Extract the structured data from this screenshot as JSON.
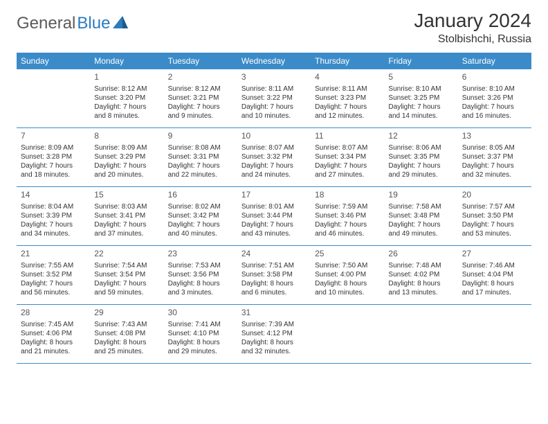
{
  "brand": {
    "name_part1": "General",
    "name_part2": "Blue",
    "text_color": "#5a5a5a",
    "accent_color": "#2a7bbf"
  },
  "header": {
    "title": "January 2024",
    "location": "Stolbishchi, Russia"
  },
  "colors": {
    "header_bg": "#3b8bc9",
    "header_fg": "#ffffff",
    "border": "#3b8bc9",
    "text": "#333333",
    "daynum": "#555555",
    "background": "#ffffff"
  },
  "day_labels": [
    "Sunday",
    "Monday",
    "Tuesday",
    "Wednesday",
    "Thursday",
    "Friday",
    "Saturday"
  ],
  "weeks": [
    [
      {
        "num": "",
        "sunrise": "",
        "sunset": "",
        "daylight": ""
      },
      {
        "num": "1",
        "sunrise": "Sunrise: 8:12 AM",
        "sunset": "Sunset: 3:20 PM",
        "daylight": "Daylight: 7 hours and 8 minutes."
      },
      {
        "num": "2",
        "sunrise": "Sunrise: 8:12 AM",
        "sunset": "Sunset: 3:21 PM",
        "daylight": "Daylight: 7 hours and 9 minutes."
      },
      {
        "num": "3",
        "sunrise": "Sunrise: 8:11 AM",
        "sunset": "Sunset: 3:22 PM",
        "daylight": "Daylight: 7 hours and 10 minutes."
      },
      {
        "num": "4",
        "sunrise": "Sunrise: 8:11 AM",
        "sunset": "Sunset: 3:23 PM",
        "daylight": "Daylight: 7 hours and 12 minutes."
      },
      {
        "num": "5",
        "sunrise": "Sunrise: 8:10 AM",
        "sunset": "Sunset: 3:25 PM",
        "daylight": "Daylight: 7 hours and 14 minutes."
      },
      {
        "num": "6",
        "sunrise": "Sunrise: 8:10 AM",
        "sunset": "Sunset: 3:26 PM",
        "daylight": "Daylight: 7 hours and 16 minutes."
      }
    ],
    [
      {
        "num": "7",
        "sunrise": "Sunrise: 8:09 AM",
        "sunset": "Sunset: 3:28 PM",
        "daylight": "Daylight: 7 hours and 18 minutes."
      },
      {
        "num": "8",
        "sunrise": "Sunrise: 8:09 AM",
        "sunset": "Sunset: 3:29 PM",
        "daylight": "Daylight: 7 hours and 20 minutes."
      },
      {
        "num": "9",
        "sunrise": "Sunrise: 8:08 AM",
        "sunset": "Sunset: 3:31 PM",
        "daylight": "Daylight: 7 hours and 22 minutes."
      },
      {
        "num": "10",
        "sunrise": "Sunrise: 8:07 AM",
        "sunset": "Sunset: 3:32 PM",
        "daylight": "Daylight: 7 hours and 24 minutes."
      },
      {
        "num": "11",
        "sunrise": "Sunrise: 8:07 AM",
        "sunset": "Sunset: 3:34 PM",
        "daylight": "Daylight: 7 hours and 27 minutes."
      },
      {
        "num": "12",
        "sunrise": "Sunrise: 8:06 AM",
        "sunset": "Sunset: 3:35 PM",
        "daylight": "Daylight: 7 hours and 29 minutes."
      },
      {
        "num": "13",
        "sunrise": "Sunrise: 8:05 AM",
        "sunset": "Sunset: 3:37 PM",
        "daylight": "Daylight: 7 hours and 32 minutes."
      }
    ],
    [
      {
        "num": "14",
        "sunrise": "Sunrise: 8:04 AM",
        "sunset": "Sunset: 3:39 PM",
        "daylight": "Daylight: 7 hours and 34 minutes."
      },
      {
        "num": "15",
        "sunrise": "Sunrise: 8:03 AM",
        "sunset": "Sunset: 3:41 PM",
        "daylight": "Daylight: 7 hours and 37 minutes."
      },
      {
        "num": "16",
        "sunrise": "Sunrise: 8:02 AM",
        "sunset": "Sunset: 3:42 PM",
        "daylight": "Daylight: 7 hours and 40 minutes."
      },
      {
        "num": "17",
        "sunrise": "Sunrise: 8:01 AM",
        "sunset": "Sunset: 3:44 PM",
        "daylight": "Daylight: 7 hours and 43 minutes."
      },
      {
        "num": "18",
        "sunrise": "Sunrise: 7:59 AM",
        "sunset": "Sunset: 3:46 PM",
        "daylight": "Daylight: 7 hours and 46 minutes."
      },
      {
        "num": "19",
        "sunrise": "Sunrise: 7:58 AM",
        "sunset": "Sunset: 3:48 PM",
        "daylight": "Daylight: 7 hours and 49 minutes."
      },
      {
        "num": "20",
        "sunrise": "Sunrise: 7:57 AM",
        "sunset": "Sunset: 3:50 PM",
        "daylight": "Daylight: 7 hours and 53 minutes."
      }
    ],
    [
      {
        "num": "21",
        "sunrise": "Sunrise: 7:55 AM",
        "sunset": "Sunset: 3:52 PM",
        "daylight": "Daylight: 7 hours and 56 minutes."
      },
      {
        "num": "22",
        "sunrise": "Sunrise: 7:54 AM",
        "sunset": "Sunset: 3:54 PM",
        "daylight": "Daylight: 7 hours and 59 minutes."
      },
      {
        "num": "23",
        "sunrise": "Sunrise: 7:53 AM",
        "sunset": "Sunset: 3:56 PM",
        "daylight": "Daylight: 8 hours and 3 minutes."
      },
      {
        "num": "24",
        "sunrise": "Sunrise: 7:51 AM",
        "sunset": "Sunset: 3:58 PM",
        "daylight": "Daylight: 8 hours and 6 minutes."
      },
      {
        "num": "25",
        "sunrise": "Sunrise: 7:50 AM",
        "sunset": "Sunset: 4:00 PM",
        "daylight": "Daylight: 8 hours and 10 minutes."
      },
      {
        "num": "26",
        "sunrise": "Sunrise: 7:48 AM",
        "sunset": "Sunset: 4:02 PM",
        "daylight": "Daylight: 8 hours and 13 minutes."
      },
      {
        "num": "27",
        "sunrise": "Sunrise: 7:46 AM",
        "sunset": "Sunset: 4:04 PM",
        "daylight": "Daylight: 8 hours and 17 minutes."
      }
    ],
    [
      {
        "num": "28",
        "sunrise": "Sunrise: 7:45 AM",
        "sunset": "Sunset: 4:06 PM",
        "daylight": "Daylight: 8 hours and 21 minutes."
      },
      {
        "num": "29",
        "sunrise": "Sunrise: 7:43 AM",
        "sunset": "Sunset: 4:08 PM",
        "daylight": "Daylight: 8 hours and 25 minutes."
      },
      {
        "num": "30",
        "sunrise": "Sunrise: 7:41 AM",
        "sunset": "Sunset: 4:10 PM",
        "daylight": "Daylight: 8 hours and 29 minutes."
      },
      {
        "num": "31",
        "sunrise": "Sunrise: 7:39 AM",
        "sunset": "Sunset: 4:12 PM",
        "daylight": "Daylight: 8 hours and 32 minutes."
      },
      {
        "num": "",
        "sunrise": "",
        "sunset": "",
        "daylight": ""
      },
      {
        "num": "",
        "sunrise": "",
        "sunset": "",
        "daylight": ""
      },
      {
        "num": "",
        "sunrise": "",
        "sunset": "",
        "daylight": ""
      }
    ]
  ]
}
